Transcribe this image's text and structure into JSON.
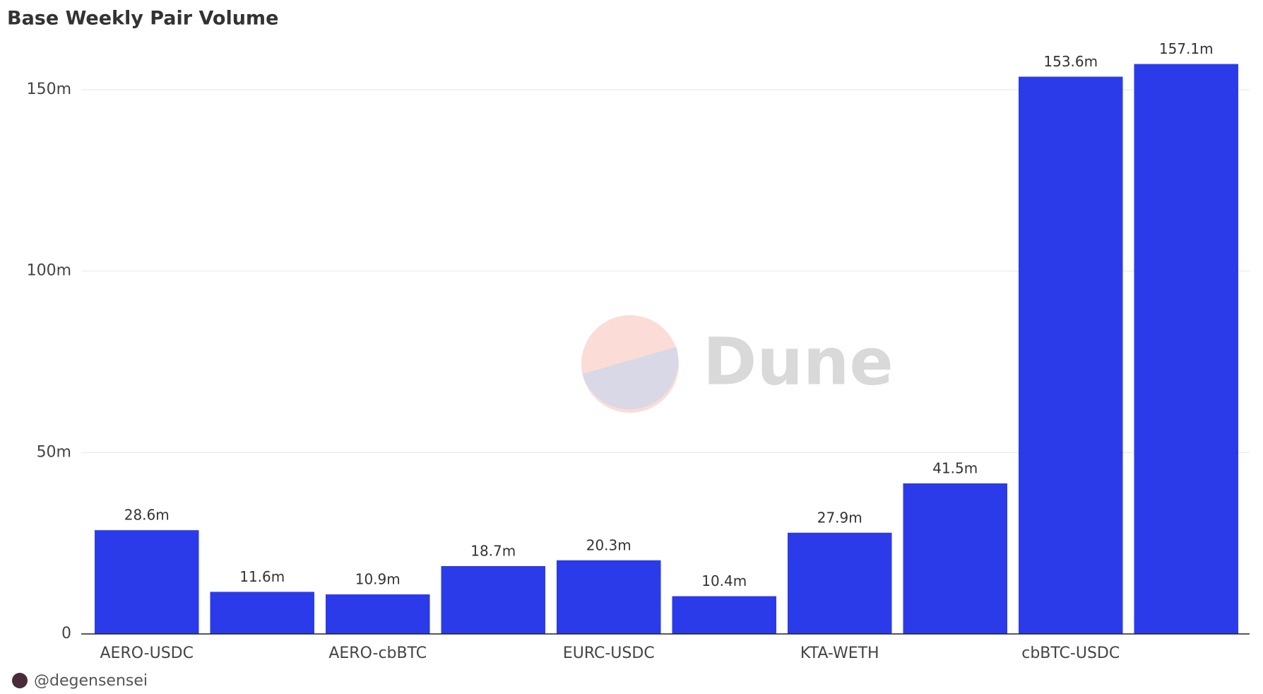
{
  "chart_data": {
    "type": "bar",
    "title": "Base Weekly Pair Volume",
    "categories": [
      "AERO-USDC",
      null,
      "AERO-cbBTC",
      null,
      "EURC-USDC",
      null,
      "KTA-WETH",
      null,
      "cbBTC-USDC",
      null
    ],
    "values": [
      28.6,
      11.6,
      10.9,
      18.7,
      20.3,
      10.4,
      27.9,
      41.5,
      153.6,
      157.1
    ],
    "value_labels": [
      "28.6m",
      "11.6m",
      "10.9m",
      "18.7m",
      "20.3m",
      "10.4m",
      "27.9m",
      "41.5m",
      "153.6m",
      "157.1m"
    ],
    "color": "#2b3bea",
    "ylim": [
      0,
      165
    ],
    "yticks": [
      0,
      {
        "value": 50,
        "label": "50m"
      },
      {
        "value": 100,
        "label": "100m"
      },
      {
        "value": 150,
        "label": "150m"
      }
    ],
    "grid": true,
    "watermark": "Dune",
    "author": "@degensensei"
  }
}
